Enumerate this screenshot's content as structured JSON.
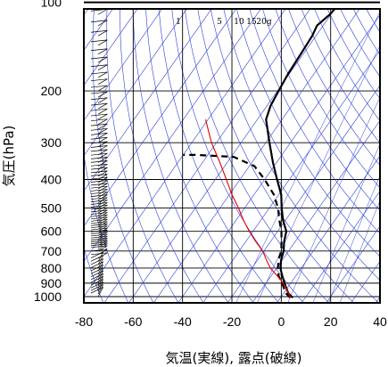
{
  "chart_data": {
    "type": "line",
    "chart_kind": "skew-T log-P diagram",
    "xlabel": "気温(実線), 露点(破線)",
    "ylabel": "気圧(hPa)",
    "x_ticks": [
      -80,
      -60,
      -40,
      -20,
      0,
      20,
      40
    ],
    "y_ticks": [
      100,
      200,
      300,
      400,
      500,
      600,
      700,
      800,
      900,
      1000
    ],
    "xlim": [
      -80,
      40
    ],
    "ylim": [
      1050,
      100
    ],
    "y_scale": "log",
    "mixing_ratio_labels": [
      "1",
      "5",
      "10",
      "15",
      "20g"
    ],
    "colors": {
      "temperature": "#000000",
      "dewpoint": "#000000",
      "parcel": "#e00000",
      "background_lines": "#2a3fd6",
      "grid": "#000000"
    },
    "series": [
      {
        "linestyle": "solid",
        "points": [
          [
            1008,
            5.0
          ],
          [
            1000,
            4.2
          ],
          [
            975,
            2.0
          ],
          [
            950,
            0.5
          ],
          [
            925,
            -1.0
          ],
          [
            900,
            -2.5
          ],
          [
            850,
            -5.5
          ],
          [
            800,
            -8.5
          ],
          [
            750,
            -10.5
          ],
          [
            700,
            -12.0
          ],
          [
            650,
            -14.5
          ],
          [
            600,
            -16.5
          ],
          [
            550,
            -21.0
          ],
          [
            500,
            -25.0
          ],
          [
            450,
            -29.0
          ],
          [
            400,
            -35.0
          ],
          [
            350,
            -41.5
          ],
          [
            300,
            -48.5
          ],
          [
            250,
            -56.5
          ],
          [
            225,
            -58.5
          ],
          [
            200,
            -59.5
          ],
          [
            175,
            -60.5
          ],
          [
            150,
            -61.0
          ],
          [
            130,
            -61.5
          ],
          [
            120,
            -62.5
          ],
          [
            110,
            -60.5
          ],
          [
            100,
            -59.5
          ]
        ]
      },
      {
        "linestyle": "dashed",
        "points": [
          [
            1008,
            4.0
          ],
          [
            1000,
            3.2
          ],
          [
            975,
            1.0
          ],
          [
            950,
            -0.5
          ],
          [
            925,
            -2.0
          ],
          [
            900,
            -3.5
          ],
          [
            850,
            -7.0
          ],
          [
            800,
            -9.5
          ],
          [
            750,
            -11.5
          ],
          [
            700,
            -13.0
          ],
          [
            650,
            -15.5
          ],
          [
            600,
            -18.5
          ],
          [
            550,
            -22.5
          ],
          [
            500,
            -26.5
          ],
          [
            450,
            -32.0
          ],
          [
            400,
            -40.0
          ],
          [
            360,
            -48.0
          ],
          [
            335,
            -59.0
          ],
          [
            330,
            -75.0
          ],
          [
            330,
            -80.0
          ]
        ]
      },
      {
        "linestyle": "solid",
        "points": [
          [
            1008,
            4.0
          ],
          [
            950,
            0.5
          ],
          [
            900,
            -3.0
          ],
          [
            850,
            -7.5
          ],
          [
            800,
            -12.5
          ],
          [
            750,
            -16.5
          ],
          [
            700,
            -20.5
          ],
          [
            650,
            -26.0
          ],
          [
            600,
            -31.5
          ],
          [
            550,
            -37.0
          ],
          [
            500,
            -42.5
          ],
          [
            450,
            -49.0
          ],
          [
            400,
            -55.5
          ],
          [
            350,
            -63.0
          ],
          [
            300,
            -72.0
          ],
          [
            250,
            -81.0
          ]
        ]
      }
    ],
    "wind_barbs_levels": [
      100,
      110,
      120,
      130,
      140,
      150,
      160,
      170,
      180,
      190,
      200,
      210,
      220,
      230,
      240,
      250,
      260,
      270,
      280,
      290,
      300,
      310,
      320,
      330,
      340,
      350,
      360,
      370,
      380,
      390,
      400,
      410,
      420,
      430,
      440,
      450,
      460,
      470,
      480,
      490,
      500,
      510,
      520,
      530,
      540,
      550,
      560,
      570,
      580,
      590,
      600,
      610,
      620,
      630,
      640,
      650,
      660,
      670,
      680,
      690,
      700,
      720,
      740,
      760,
      780,
      800,
      820,
      840,
      860,
      880,
      900,
      920,
      940,
      960,
      980,
      1000
    ]
  }
}
